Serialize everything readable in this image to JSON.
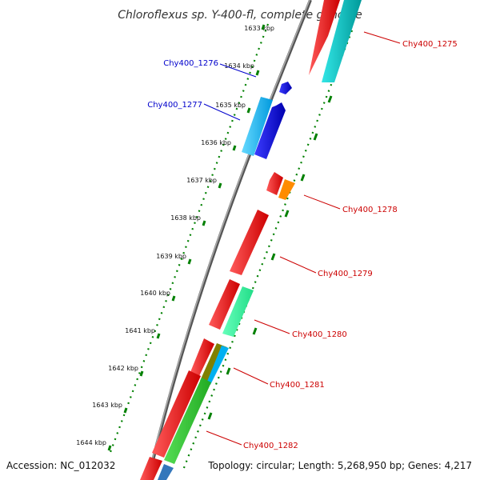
{
  "title": "Chloroflexus sp. Y-400-fl, complete genome",
  "footer": {
    "accession": "Accession: NC_012032",
    "topology": "Topology: circular; Length: 5,268,950 bp; Genes: 4,217"
  },
  "ticks": [
    "1633 kbp",
    "1634 kbp",
    "1635 kbp",
    "1636 kbp",
    "1637 kbp",
    "1638 kbp",
    "1639 kbp",
    "1640 kbp",
    "1641 kbp",
    "1642 kbp",
    "1643 kbp",
    "1644 kbp"
  ],
  "gene_labels": {
    "left": [
      {
        "text": "Chy400_1276",
        "color": "#0000cc"
      },
      {
        "text": "Chy400_1277",
        "color": "#0000cc"
      }
    ],
    "right": [
      {
        "text": "Chy400_1275",
        "color": "#cc0000"
      },
      {
        "text": "Chy400_1278",
        "color": "#cc0000"
      },
      {
        "text": "Chy400_1279",
        "color": "#cc0000"
      },
      {
        "text": "Chy400_1280",
        "color": "#cc0000"
      },
      {
        "text": "Chy400_1281",
        "color": "#cc0000"
      },
      {
        "text": "Chy400_1282",
        "color": "#cc0000"
      }
    ]
  },
  "colors": {
    "backbone": "#888888",
    "forward_strand": "#ff0000",
    "reverse_strand": "#0000ff",
    "reverse_strand_alt": "#00b0f0",
    "gene_1275": "#00cccc",
    "gene_1278": "#ff8c00",
    "gene_1280": "#33ff99",
    "gene_1281": "#808000",
    "gene_1282": "#33cc33",
    "tick_major": "#008000",
    "tick_dots": "#008000"
  }
}
